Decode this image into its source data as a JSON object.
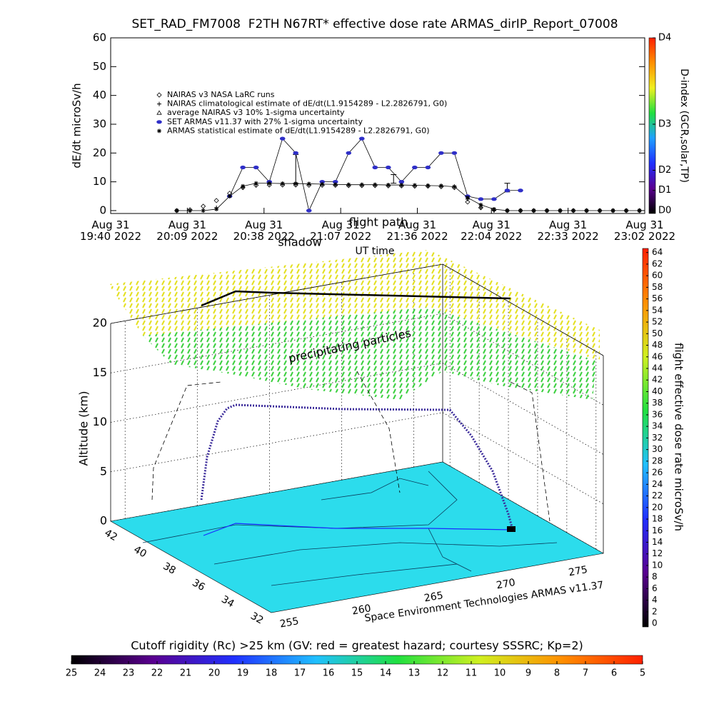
{
  "chart_data": [
    {
      "type": "line",
      "title": "SET_RAD_FM7008  F2TH N67RT* effective dose rate ARMAS_dirIP_Report_07008",
      "xlabel": "UT time",
      "ylabel": "dE/dt microSv/h",
      "x": [
        "2022-08-31 20:05",
        "2022-08-31 20:10",
        "2022-08-31 20:15",
        "2022-08-31 20:20",
        "2022-08-31 20:25",
        "2022-08-31 20:30",
        "2022-08-31 20:35",
        "2022-08-31 20:40",
        "2022-08-31 20:45",
        "2022-08-31 20:50",
        "2022-08-31 20:55",
        "2022-08-31 21:00",
        "2022-08-31 21:05",
        "2022-08-31 21:10",
        "2022-08-31 21:15",
        "2022-08-31 21:20",
        "2022-08-31 21:25",
        "2022-08-31 21:30",
        "2022-08-31 21:35",
        "2022-08-31 21:40",
        "2022-08-31 21:45",
        "2022-08-31 21:50",
        "2022-08-31 21:55",
        "2022-08-31 22:00",
        "2022-08-31 22:05",
        "2022-08-31 22:10",
        "2022-08-31 22:15",
        "2022-08-31 22:20",
        "2022-08-31 22:25",
        "2022-08-31 22:30",
        "2022-08-31 22:35",
        "2022-08-31 22:40",
        "2022-08-31 22:45",
        "2022-08-31 22:50",
        "2022-08-31 22:55",
        "2022-08-31 23:00"
      ],
      "xlim": [
        "2022-08-31 19:40",
        "2022-08-31 23:02"
      ],
      "xticks": [
        {
          "value": "2022-08-31 19:40",
          "label": "Aug 31\n19:40 2022"
        },
        {
          "value": "2022-08-31 20:09",
          "label": "Aug 31\n20:09 2022"
        },
        {
          "value": "2022-08-31 20:38",
          "label": "Aug 31\n20:38 2022"
        },
        {
          "value": "2022-08-31 21:07",
          "label": "Aug 31\n21:07 2022"
        },
        {
          "value": "2022-08-31 21:36",
          "label": "Aug 31\n21:36 2022"
        },
        {
          "value": "2022-08-31 22:04",
          "label": "Aug 31\n22:04 2022"
        },
        {
          "value": "2022-08-31 22:33",
          "label": "Aug 31\n22:33 2022"
        },
        {
          "value": "2022-08-31 23:02",
          "label": "Aug 31\n23:02 2022"
        }
      ],
      "ylim": [
        -1,
        60
      ],
      "yticks": [
        0,
        10,
        20,
        30,
        40,
        50,
        60
      ],
      "legend": "upper left",
      "series": [
        {
          "name": "NAIRAS v3 NASA LaRC runs",
          "marker": "diamond",
          "color": "#000000",
          "values": [
            0,
            0.3,
            1.5,
            3.5,
            6,
            8,
            8.8,
            8.9,
            8.9,
            8.9,
            8.8,
            8.8,
            8.8,
            8.7,
            8.7,
            8.7,
            8.6,
            8.6,
            8.5,
            8.5,
            8.3,
            8,
            3,
            1,
            0.3,
            0,
            0,
            0,
            0,
            0,
            0,
            0,
            0,
            0,
            0,
            0
          ]
        },
        {
          "name": "NAIRAS climatological estimate of dE/dt(L1.9154289 - L2.2826791, G0)",
          "marker": "plus",
          "color": "#000000",
          "values": [
            0,
            0,
            0,
            1,
            5,
            8,
            9,
            9.3,
            9.3,
            9.2,
            9.2,
            9.1,
            9,
            9,
            9,
            9,
            8.9,
            8.9,
            8.8,
            8.7,
            8.6,
            8.4,
            4,
            1,
            0,
            0,
            0,
            0,
            0,
            0,
            0,
            0,
            0,
            0,
            0,
            0
          ]
        },
        {
          "name": "average NAIRAS v3 10% 1-sigma uncertainty",
          "marker": "triangle",
          "color": "#000000",
          "x": [
            "2022-08-31 20:50",
            "2022-08-31 21:27",
            "2022-08-31 22:10"
          ],
          "values": [
            14.5,
            11,
            8
          ],
          "errors": [
            5,
            1.5,
            1.5
          ]
        },
        {
          "name": "SET ARMAS v11.37 with 27% 1-sigma uncertainty",
          "marker": "circle",
          "color": "#2f2fc8",
          "line": true,
          "values": [
            null,
            null,
            null,
            null,
            5,
            15,
            15,
            10,
            25,
            20,
            0,
            10,
            10,
            20,
            25,
            15,
            15,
            10,
            15,
            15,
            20,
            20,
            5,
            4,
            4,
            7,
            7,
            null,
            null,
            null,
            null,
            null,
            null,
            null,
            null,
            null
          ]
        },
        {
          "name": "ARMAS statistical estimate of dE/dt(L1.9154289 - L2.2826791, G0)",
          "marker": "asterisk",
          "color": "#000000",
          "line": true,
          "values": [
            0,
            0,
            0,
            0.5,
            5,
            8.5,
            9.5,
            9.5,
            9.4,
            9.4,
            9.3,
            9.2,
            9.1,
            9,
            9,
            9,
            8.9,
            8.9,
            8.8,
            8.7,
            8.6,
            8.3,
            4.5,
            2,
            0.5,
            0,
            0,
            0,
            0,
            0,
            0,
            0,
            0,
            0,
            0,
            0
          ]
        }
      ],
      "colorbar": {
        "label": "D-index (GCR,solar,TP)",
        "colors": [
          "#000000",
          "#5a0090",
          "#2030ff",
          "#20a0ff",
          "#20e040",
          "#f0f020",
          "#ff9000",
          "#ff2000"
        ],
        "ticks": [
          {
            "value": 0,
            "label": "D0"
          },
          {
            "value": 7,
            "label": "D1"
          },
          {
            "value": 14,
            "label": "D2"
          },
          {
            "value": 30,
            "label": "D3"
          },
          {
            "value": 60,
            "label": "D4"
          }
        ]
      }
    },
    {
      "type": "surface3d",
      "zlabel": "Altitude (km)",
      "zlim": [
        0,
        20
      ],
      "zticks": [
        0,
        5,
        10,
        15,
        20
      ],
      "ylim": [
        42.5,
        31.5
      ],
      "yticks": [
        42,
        40,
        38,
        36,
        34,
        32
      ],
      "xlim": [
        254,
        277
      ],
      "xticks": [
        255,
        260,
        265,
        270,
        275
      ],
      "floor_color": "#2cdcec",
      "annotations": [
        "precipitating particles",
        "flight path",
        "shadow"
      ],
      "credit": "Space Environment Technologies ARMAS v11.37",
      "colorbar": {
        "label": "flight effective dose rate microSv/h",
        "lim": [
          -0.6,
          64.7
        ],
        "colors": [
          "#000000",
          "#5a0090",
          "#2030ff",
          "#20c0ff",
          "#20e040",
          "#d0f020",
          "#ff9000",
          "#ff2000"
        ],
        "ticks": [
          0,
          2,
          4,
          6,
          8,
          10,
          12,
          14,
          16,
          18,
          20,
          22,
          24,
          26,
          28,
          30,
          32,
          34,
          36,
          38,
          40,
          42,
          44,
          46,
          48,
          50,
          52,
          54,
          56,
          58,
          60,
          62,
          64
        ]
      },
      "floor_colorbar": {
        "title": "Cutoff rigidity (Rc) >25 km (GV: red = greatest hazard; courtesy SSSRC; Kp=2)",
        "lim": [
          25,
          5
        ],
        "colors": [
          "#000000",
          "#5a0090",
          "#2030ff",
          "#20c0ff",
          "#20e040",
          "#d0f020",
          "#ff9000",
          "#ff2000"
        ],
        "ticks": [
          25,
          24,
          23,
          22,
          21,
          20,
          19,
          18,
          17,
          16,
          15,
          14,
          13,
          12,
          11,
          10,
          9,
          8,
          7,
          6,
          5
        ]
      }
    }
  ]
}
